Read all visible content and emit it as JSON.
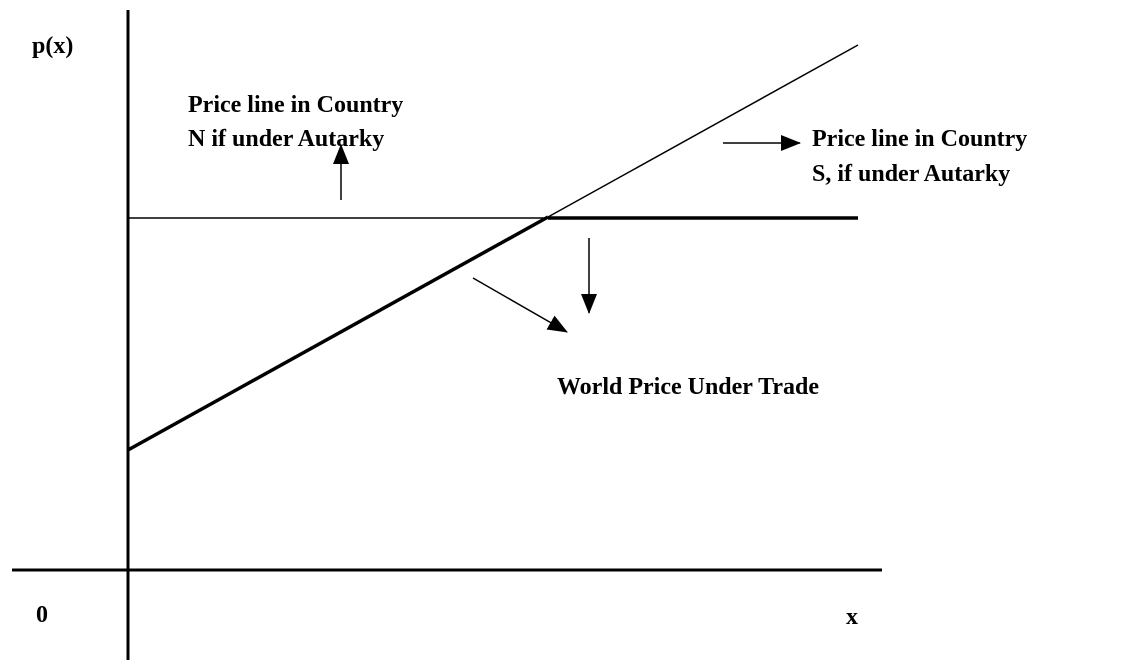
{
  "axes": {
    "y_label": "p(x)",
    "x_label": "x",
    "origin": "0"
  },
  "annotations": {
    "north": [
      "Price line in Country",
      "N if under Autarky"
    ],
    "south": [
      "Price line in Country",
      "S, if under Autarky"
    ],
    "world": "World Price Under Trade"
  }
}
